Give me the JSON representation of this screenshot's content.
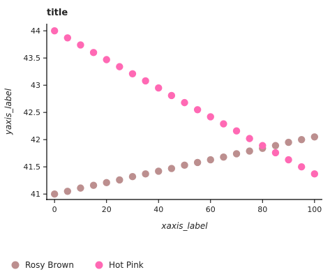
{
  "chart_data": {
    "type": "scatter",
    "title": "title",
    "xlabel": "xaxis_label",
    "ylabel": "yaxis_label",
    "xlim": [
      -3,
      103
    ],
    "ylim": [
      40.9,
      44.13
    ],
    "x_ticks": [
      0,
      20,
      40,
      60,
      80,
      100
    ],
    "y_ticks": [
      41,
      41.5,
      42,
      42.5,
      43,
      43.5,
      44
    ],
    "grid": false,
    "legend_position": "bottom",
    "series": [
      {
        "name": "Rosy Brown",
        "color": "#bc8f8f",
        "x": [
          0,
          5,
          10,
          15,
          20,
          25,
          30,
          35,
          40,
          45,
          50,
          55,
          60,
          65,
          70,
          75,
          80,
          85,
          90,
          95,
          100
        ],
        "y": [
          41.0,
          41.05,
          41.11,
          41.16,
          41.21,
          41.26,
          41.32,
          41.37,
          41.42,
          41.47,
          41.53,
          41.58,
          41.63,
          41.68,
          41.74,
          41.79,
          41.84,
          41.89,
          41.95,
          42.0,
          42.05
        ]
      },
      {
        "name": "Hot Pink",
        "color": "#ff69b4",
        "x": [
          0,
          5,
          10,
          15,
          20,
          25,
          30,
          35,
          40,
          45,
          50,
          55,
          60,
          65,
          70,
          75,
          80,
          85,
          90,
          95,
          100
        ],
        "y": [
          44.0,
          43.87,
          43.74,
          43.6,
          43.47,
          43.34,
          43.21,
          43.08,
          42.95,
          42.81,
          42.68,
          42.55,
          42.42,
          42.29,
          42.16,
          42.02,
          41.89,
          41.76,
          41.63,
          41.5,
          41.37
        ]
      }
    ]
  }
}
